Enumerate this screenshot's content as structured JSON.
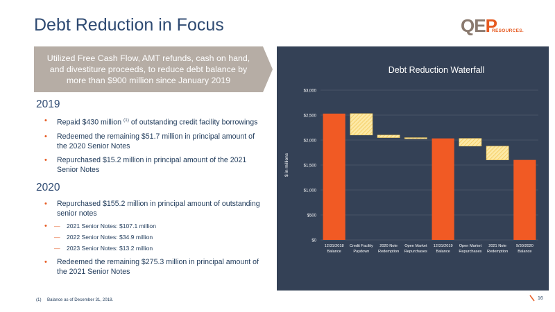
{
  "slide": {
    "title": "Debt Reduction in Focus",
    "page_number": "16"
  },
  "logo": {
    "mark_prefix": "QE",
    "mark_suffix": "P",
    "sub": "RESOURCES."
  },
  "callout": {
    "text": "Utilized Free Cash Flow, AMT refunds, cash on hand, and divestiture proceeds, to reduce debt balance by more than $900 million since January 2019"
  },
  "sections": {
    "y2019": {
      "heading": "2019",
      "bullet1_main": "Repaid $430 million",
      "bullet1_sup": "(1)",
      "bullet1_rest": " of outstanding credit facility borrowings",
      "bullet2": "Redeemed the remaining $51.7 million in principal amount of the 2020 Senior Notes",
      "bullet3": "Repurchased $15.2 million in principal amount of the 2021 Senior Notes"
    },
    "y2020": {
      "heading": "2020",
      "bullet1": "Repurchased $155.2 million in principal amount of outstanding senior notes",
      "sub1": "2021 Senior Notes: $107.1 million",
      "sub2": "2022 Senior Notes: $34.9 million",
      "sub3": "2023 Senior Notes: $13.2 million",
      "bullet2": "Redeemed the remaining $275.3 million in principal amount of the 2021 Senior Notes"
    }
  },
  "footnote": {
    "label": "(1)",
    "text": "Balance as of December 31, 2018."
  },
  "chart_data": {
    "type": "bar",
    "subtype": "waterfall",
    "title": "Debt Reduction Waterfall",
    "ylabel": "$ in millions",
    "ylim": [
      0,
      3000
    ],
    "yticks": [
      "$0",
      "$500",
      "$1,000",
      "$1,500",
      "$2,000",
      "$2,500",
      "$3,000"
    ],
    "ytick_values": [
      0,
      500,
      1000,
      1500,
      2000,
      2500,
      3000
    ],
    "grid": true,
    "categories": [
      [
        "12/31/2018",
        "Balance"
      ],
      [
        "Credit Facility",
        "Paydown"
      ],
      [
        "2020 Note",
        "Redemption"
      ],
      [
        "Open Market",
        "Repurchases"
      ],
      [
        "12/31/2019",
        "Balance"
      ],
      [
        "Open Market",
        "Repurchases"
      ],
      [
        "2021 Note",
        "Redemption"
      ],
      [
        "9/30/2020",
        "Balance"
      ]
    ],
    "bars": [
      {
        "kind": "total",
        "start": 0,
        "end": 2530
      },
      {
        "kind": "decrease",
        "start": 2530,
        "end": 2100
      },
      {
        "kind": "decrease",
        "start": 2100,
        "end": 2048
      },
      {
        "kind": "decrease",
        "start": 2048,
        "end": 2033
      },
      {
        "kind": "total",
        "start": 0,
        "end": 2033
      },
      {
        "kind": "decrease",
        "start": 2033,
        "end": 1878
      },
      {
        "kind": "decrease",
        "start": 1878,
        "end": 1602
      },
      {
        "kind": "total",
        "start": 0,
        "end": 1602
      }
    ],
    "colors": {
      "total": "#f15a24",
      "decrease_fill": "#fde9a6",
      "decrease_hatch": "#f3c95a",
      "panel_bg": "#344156",
      "text": "#ffffff",
      "grid": "#5a6678"
    }
  }
}
